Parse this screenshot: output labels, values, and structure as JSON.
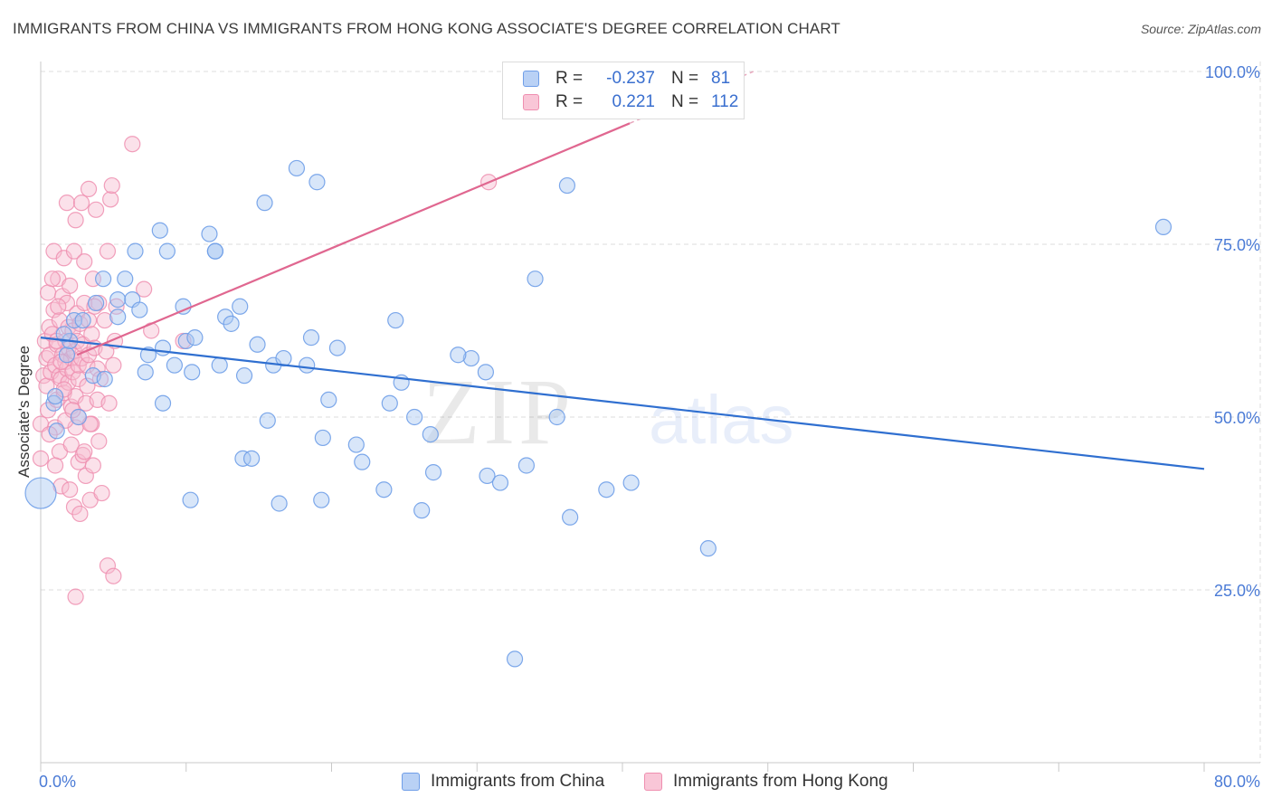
{
  "title": "IMMIGRANTS FROM CHINA VS IMMIGRANTS FROM HONG KONG ASSOCIATE'S DEGREE CORRELATION CHART",
  "source": "Source: ZipAtlas.com",
  "watermark": {
    "part1": "ZIP",
    "part2": "atlas"
  },
  "colors": {
    "china": "#6f9ee8",
    "china_fill": "#a9c7f2",
    "china_line": "#2f6fd0",
    "hongkong": "#ef8fb0",
    "hongkong_fill": "#f7bcd0",
    "hongkong_line": "#e06790",
    "grid": "#dedede",
    "tick_label": "#4b7bd6"
  },
  "stats": [
    {
      "r_label": "R =",
      "r_value": "-0.237",
      "n_label": "N =",
      "n_value": "81"
    },
    {
      "r_label": "R =",
      "r_value": "0.221",
      "n_label": "N =",
      "n_value": "112"
    }
  ],
  "legend": {
    "china": "Immigrants from China",
    "hongkong": "Immigrants from Hong Kong"
  },
  "chart_data": {
    "type": "scatter",
    "ylabel": "Associate's Degree",
    "xlabel": "",
    "xlim": [
      0,
      80
    ],
    "ylim": [
      0,
      102
    ],
    "x_tick_labels": [
      {
        "value": 0,
        "label": "0.0%"
      },
      {
        "value": 80,
        "label": "80.0%"
      }
    ],
    "y_tick_labels": [
      {
        "value": 25,
        "label": "25.0%"
      },
      {
        "value": 50,
        "label": "50.0%"
      },
      {
        "value": 75,
        "label": "75.0%"
      },
      {
        "value": 100,
        "label": "100.0%"
      }
    ],
    "grid": true,
    "series": [
      {
        "name": "Immigrants from China",
        "color": "#6f9ee8",
        "trend": {
          "x": [
            0,
            80
          ],
          "y": [
            61.5,
            42.5
          ]
        },
        "points": [
          [
            0.0,
            39.0
          ],
          [
            0.9,
            52.0
          ],
          [
            1.0,
            53.0
          ],
          [
            1.1,
            48.0
          ],
          [
            1.8,
            59.0
          ],
          [
            2.0,
            61.0
          ],
          [
            2.3,
            64.0
          ],
          [
            2.6,
            50.0
          ],
          [
            2.9,
            64.0
          ],
          [
            3.6,
            56.0
          ],
          [
            3.8,
            66.5
          ],
          [
            4.3,
            70.0
          ],
          [
            4.4,
            55.5
          ],
          [
            5.3,
            67.0
          ],
          [
            5.8,
            70.0
          ],
          [
            6.3,
            67.0
          ],
          [
            6.5,
            74.0
          ],
          [
            6.8,
            65.5
          ],
          [
            7.2,
            56.5
          ],
          [
            7.4,
            59.0
          ],
          [
            8.2,
            77.0
          ],
          [
            8.4,
            60.0
          ],
          [
            8.4,
            52.0
          ],
          [
            8.7,
            74.0
          ],
          [
            9.8,
            66.0
          ],
          [
            10.0,
            61.0
          ],
          [
            10.4,
            56.5
          ],
          [
            10.6,
            61.5
          ],
          [
            11.6,
            76.5
          ],
          [
            12.0,
            74.0
          ],
          [
            12.0,
            74.0
          ],
          [
            12.3,
            57.5
          ],
          [
            12.7,
            64.5
          ],
          [
            13.1,
            63.5
          ],
          [
            13.7,
            66.0
          ],
          [
            13.9,
            44.0
          ],
          [
            14.5,
            44.0
          ],
          [
            14.9,
            60.5
          ],
          [
            15.4,
            81.0
          ],
          [
            15.6,
            49.5
          ],
          [
            16.0,
            57.5
          ],
          [
            16.7,
            58.5
          ],
          [
            17.6,
            86.0
          ],
          [
            18.3,
            57.5
          ],
          [
            18.6,
            61.5
          ],
          [
            19.0,
            84.0
          ],
          [
            19.4,
            47.0
          ],
          [
            19.8,
            52.5
          ],
          [
            20.4,
            60.0
          ],
          [
            22.1,
            43.5
          ],
          [
            23.6,
            39.5
          ],
          [
            24.0,
            52.0
          ],
          [
            24.4,
            64.0
          ],
          [
            24.8,
            55.0
          ],
          [
            25.7,
            50.0
          ],
          [
            26.2,
            36.5
          ],
          [
            26.8,
            47.5
          ],
          [
            27.0,
            42.0
          ],
          [
            29.6,
            58.5
          ],
          [
            30.6,
            56.5
          ],
          [
            30.7,
            41.5
          ],
          [
            31.6,
            40.5
          ],
          [
            32.6,
            15.0
          ],
          [
            33.4,
            43.0
          ],
          [
            35.5,
            50.0
          ],
          [
            36.2,
            83.5
          ],
          [
            36.4,
            35.5
          ],
          [
            38.9,
            39.5
          ],
          [
            40.6,
            40.5
          ],
          [
            45.9,
            31.0
          ],
          [
            77.2,
            77.5
          ],
          [
            14.0,
            56.0
          ],
          [
            9.2,
            57.5
          ],
          [
            21.7,
            46.0
          ],
          [
            5.3,
            64.5
          ],
          [
            19.3,
            38.0
          ],
          [
            10.3,
            38.0
          ],
          [
            16.4,
            37.5
          ],
          [
            28.7,
            59.0
          ],
          [
            34.0,
            70.0
          ],
          [
            1.6,
            62.0
          ]
        ]
      },
      {
        "name": "Immigrants from Hong Kong",
        "color": "#ef8fb0",
        "trend": {
          "x": [
            2.5,
            40.5
          ],
          "y": [
            59.0,
            92.5
          ]
        },
        "points": [
          [
            0.0,
            44.0
          ],
          [
            0.0,
            49.0
          ],
          [
            0.2,
            56.0
          ],
          [
            0.3,
            61.0
          ],
          [
            0.4,
            58.5
          ],
          [
            0.4,
            54.5
          ],
          [
            0.5,
            51.0
          ],
          [
            0.5,
            68.0
          ],
          [
            0.6,
            59.0
          ],
          [
            0.6,
            63.0
          ],
          [
            0.7,
            56.5
          ],
          [
            0.8,
            62.0
          ],
          [
            0.9,
            65.5
          ],
          [
            0.9,
            74.0
          ],
          [
            1.0,
            57.5
          ],
          [
            1.0,
            48.5
          ],
          [
            1.1,
            60.5
          ],
          [
            1.1,
            52.5
          ],
          [
            1.2,
            70.0
          ],
          [
            1.3,
            56.0
          ],
          [
            1.3,
            45.0
          ],
          [
            1.3,
            64.0
          ],
          [
            1.4,
            55.5
          ],
          [
            1.4,
            40.0
          ],
          [
            1.5,
            59.0
          ],
          [
            1.5,
            67.5
          ],
          [
            1.6,
            73.0
          ],
          [
            1.6,
            53.5
          ],
          [
            1.7,
            58.0
          ],
          [
            1.7,
            61.0
          ],
          [
            1.8,
            81.0
          ],
          [
            1.8,
            66.5
          ],
          [
            1.8,
            57.0
          ],
          [
            1.9,
            63.0
          ],
          [
            1.9,
            60.0
          ],
          [
            1.9,
            55.0
          ],
          [
            2.0,
            69.0
          ],
          [
            2.1,
            58.5
          ],
          [
            2.1,
            51.5
          ],
          [
            2.1,
            46.0
          ],
          [
            2.2,
            56.5
          ],
          [
            2.2,
            62.5
          ],
          [
            2.3,
            74.0
          ],
          [
            2.3,
            37.0
          ],
          [
            2.3,
            59.5
          ],
          [
            2.4,
            53.0
          ],
          [
            2.4,
            48.5
          ],
          [
            2.4,
            78.5
          ],
          [
            2.5,
            65.0
          ],
          [
            2.5,
            61.0
          ],
          [
            2.6,
            43.5
          ],
          [
            2.6,
            55.5
          ],
          [
            2.6,
            57.5
          ],
          [
            2.6,
            50.0
          ],
          [
            2.7,
            36.0
          ],
          [
            2.7,
            63.5
          ],
          [
            2.8,
            58.5
          ],
          [
            2.8,
            81.0
          ],
          [
            2.9,
            44.5
          ],
          [
            2.9,
            60.5
          ],
          [
            3.0,
            72.5
          ],
          [
            3.0,
            66.5
          ],
          [
            3.1,
            52.0
          ],
          [
            3.1,
            41.5
          ],
          [
            3.2,
            57.5
          ],
          [
            3.2,
            54.5
          ],
          [
            3.3,
            64.0
          ],
          [
            3.3,
            59.0
          ],
          [
            3.3,
            83.0
          ],
          [
            3.4,
            38.0
          ],
          [
            3.5,
            62.0
          ],
          [
            3.5,
            49.0
          ],
          [
            3.6,
            43.0
          ],
          [
            3.6,
            70.0
          ],
          [
            3.7,
            60.0
          ],
          [
            3.8,
            80.0
          ],
          [
            3.9,
            57.0
          ],
          [
            3.9,
            52.5
          ],
          [
            4.0,
            66.5
          ],
          [
            4.0,
            46.5
          ],
          [
            4.1,
            55.5
          ],
          [
            4.2,
            39.0
          ],
          [
            4.4,
            64.0
          ],
          [
            4.5,
            59.5
          ],
          [
            4.6,
            28.5
          ],
          [
            4.6,
            74.0
          ],
          [
            4.7,
            52.0
          ],
          [
            4.8,
            81.5
          ],
          [
            5.0,
            57.5
          ],
          [
            5.0,
            27.0
          ],
          [
            5.1,
            61.0
          ],
          [
            5.2,
            66.0
          ],
          [
            6.3,
            89.5
          ],
          [
            7.1,
            68.5
          ],
          [
            7.6,
            62.5
          ],
          [
            9.8,
            61.0
          ],
          [
            0.6,
            47.5
          ],
          [
            1.0,
            43.0
          ],
          [
            1.2,
            66.0
          ],
          [
            1.4,
            58.0
          ],
          [
            1.6,
            54.0
          ],
          [
            1.7,
            49.5
          ],
          [
            2.0,
            39.5
          ],
          [
            2.2,
            51.0
          ],
          [
            2.4,
            24.0
          ],
          [
            3.0,
            45.0
          ],
          [
            3.4,
            49.0
          ],
          [
            4.9,
            83.5
          ],
          [
            30.8,
            84.0
          ],
          [
            0.8,
            70.0
          ],
          [
            1.1,
            61.0
          ],
          [
            3.7,
            66.0
          ]
        ]
      }
    ]
  }
}
